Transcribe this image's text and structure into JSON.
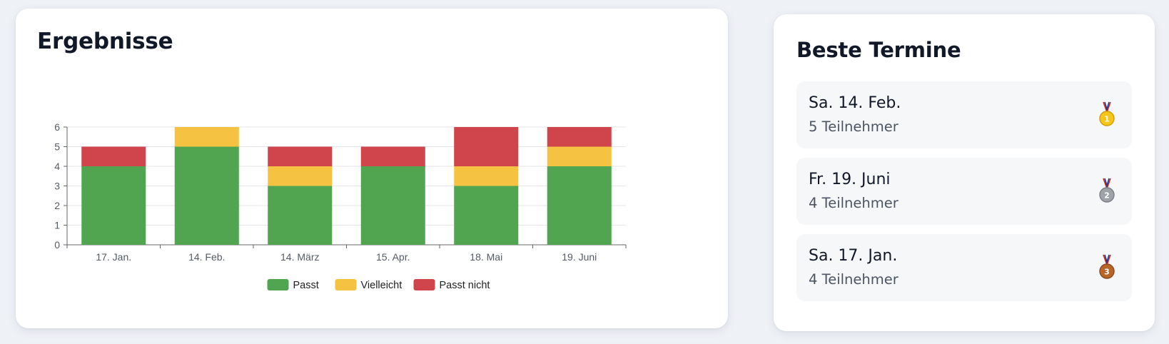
{
  "results": {
    "title": "Ergebnisse"
  },
  "chart_data": {
    "type": "bar",
    "stacked": true,
    "categories": [
      "17. Jan.",
      "14. Feb.",
      "14. März",
      "15. Apr.",
      "18. Mai",
      "19. Juni"
    ],
    "series": [
      {
        "name": "Passt",
        "color": "#52a550",
        "values": [
          4,
          5,
          3,
          4,
          3,
          4
        ]
      },
      {
        "name": "Vielleicht",
        "color": "#f5c242",
        "values": [
          0,
          1,
          1,
          0,
          1,
          1
        ]
      },
      {
        "name": "Passt nicht",
        "color": "#d0444b",
        "values": [
          1,
          0,
          1,
          1,
          2,
          1
        ]
      }
    ],
    "y_ticks": [
      "0",
      "1",
      "2",
      "3",
      "4",
      "5",
      "6"
    ],
    "ylim": [
      0,
      6
    ],
    "grid": true,
    "legend_position": "bottom",
    "title": "",
    "xlabel": "",
    "ylabel": ""
  },
  "best": {
    "title": "Beste Termine",
    "items": [
      {
        "date": "Sa. 14. Feb.",
        "participants": "5 Teilnehmer",
        "medal": "gold-medal-icon",
        "rank": "1",
        "color": "#f5c518"
      },
      {
        "date": "Fr. 19. Juni",
        "participants": "4 Teilnehmer",
        "medal": "silver-medal-icon",
        "rank": "2",
        "color": "#9ea3a8"
      },
      {
        "date": "Sa. 17. Jan.",
        "participants": "4 Teilnehmer",
        "medal": "bronze-medal-icon",
        "rank": "3",
        "color": "#b8652a"
      }
    ]
  }
}
